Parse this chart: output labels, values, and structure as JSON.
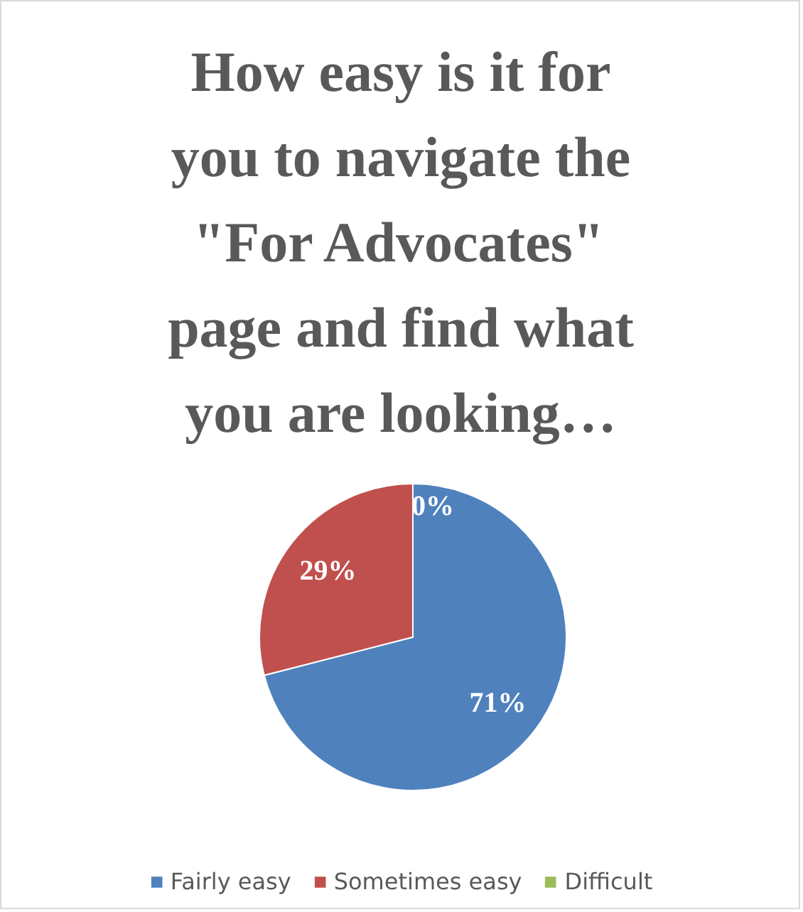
{
  "chart_data": {
    "type": "pie",
    "title": "How easy is it for you to navigate the \"For Advocates\" page and find what you are looking…",
    "categories": [
      "Fairly easy",
      "Sometimes easy",
      "Difficult"
    ],
    "values": [
      71,
      29,
      0
    ],
    "colors": [
      "#4f81bd",
      "#c0504d",
      "#9bbb59"
    ],
    "value_labels": [
      "71%",
      "29%",
      "0%"
    ],
    "legend": "bottom"
  }
}
